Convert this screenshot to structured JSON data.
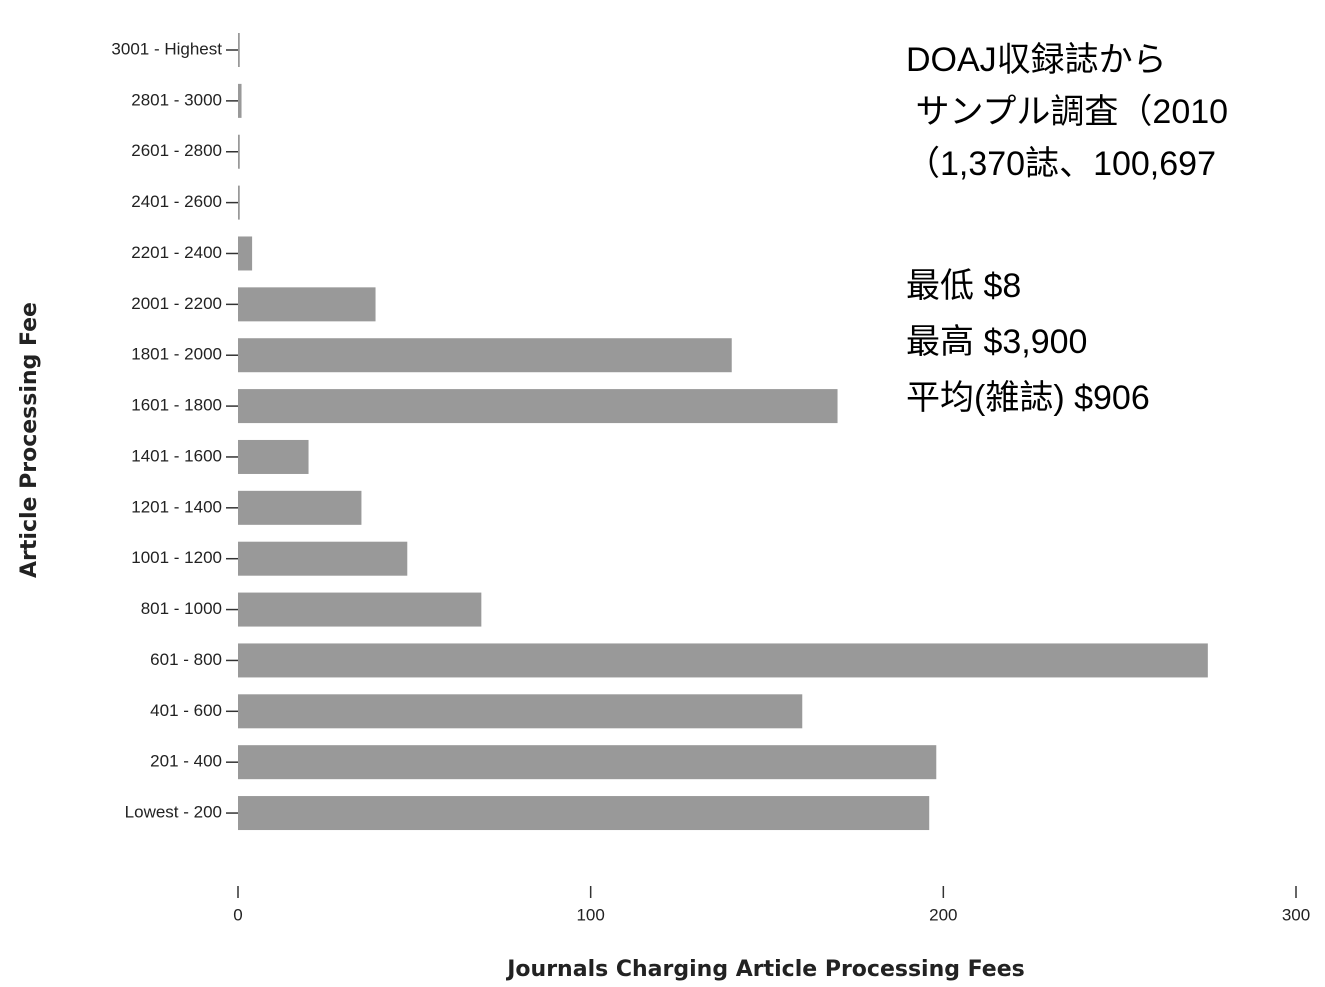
{
  "chart_data": {
    "type": "bar",
    "orientation": "horizontal",
    "categories": [
      "3001 - Highest",
      "2801 - 3000",
      "2601 - 2800",
      "2401 - 2600",
      "2201 - 2400",
      "2001 - 2200",
      "1801 - 2000",
      "1601 - 1800",
      "1401 - 1600",
      "1201 - 1400",
      "1001 - 1200",
      "801 - 1000",
      "601 - 800",
      "401 - 600",
      "201 - 400",
      "Lowest - 200"
    ],
    "values": [
      0.5,
      1,
      0.5,
      0.5,
      4,
      39,
      140,
      170,
      20,
      35,
      48,
      69,
      275,
      160,
      198,
      196
    ],
    "color": "#999999",
    "xlim": [
      0,
      300
    ],
    "xticks": [
      0,
      100,
      200,
      300
    ],
    "xlabel": "Journals Charging Article Processing Fees",
    "ylabel": "Article Processing Fee",
    "annotations": [
      "DOAJ収録誌から",
      " サンプル調査（2010",
      "（1,370誌、100,697",
      "最低 $8",
      "最高 $3,900",
      "平均(雑誌) $906"
    ]
  }
}
